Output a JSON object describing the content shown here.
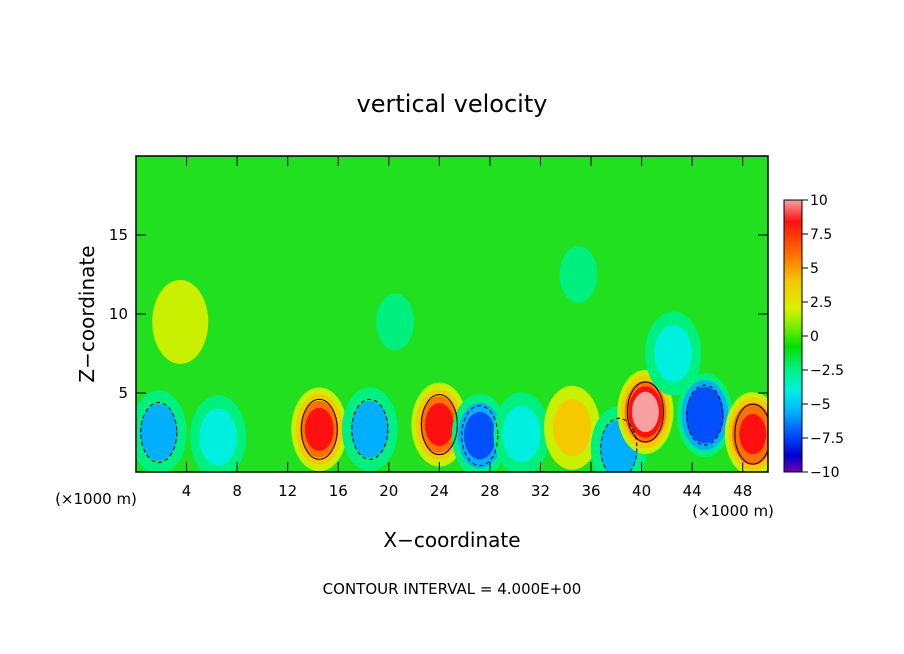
{
  "chart_data": {
    "type": "heatmap",
    "title": "vertical velocity",
    "xlabel": "X−coordinate",
    "ylabel": "Z−coordinate",
    "x_unit_left": "(×1000 m)",
    "x_unit_right": "(×1000 m)",
    "footer": "CONTOUR INTERVAL = 4.000E+00",
    "xlim": [
      0,
      50
    ],
    "ylim": [
      0,
      20
    ],
    "x_ticks": [
      4,
      8,
      12,
      16,
      20,
      24,
      28,
      32,
      36,
      40,
      44,
      48
    ],
    "x_tick_labels": [
      "4",
      "8",
      "12",
      "16",
      "20",
      "24",
      "28",
      "32",
      "36",
      "40",
      "44",
      "48"
    ],
    "y_ticks": [
      5,
      10,
      15
    ],
    "y_tick_labels": [
      "5",
      "10",
      "15"
    ],
    "colorbar": {
      "range": [
        -10,
        10
      ],
      "tick_values": [
        10,
        7.5,
        5,
        2.5,
        0,
        -2.5,
        -5,
        -7.5,
        -10
      ],
      "tick_labels": [
        "10",
        "7.5",
        "5",
        "2.5",
        "0",
        "−2.5",
        "−5",
        "−7.5",
        "−10"
      ],
      "colors": [
        "#f7a0a0",
        "#ff1010",
        "#ff7000",
        "#f5c800",
        "#d8f000",
        "#80f000",
        "#00e000",
        "#00f080",
        "#00f0e0",
        "#00b0ff",
        "#0050ff",
        "#0000d0",
        "#7000b0"
      ]
    },
    "features": [
      {
        "x": 1.8,
        "z": 2.5,
        "w": -4
      },
      {
        "x": 6.5,
        "z": 2.2,
        "w": -2.5
      },
      {
        "x": 14.5,
        "z": 2.7,
        "w": 7.5
      },
      {
        "x": 18.5,
        "z": 2.7,
        "w": -4
      },
      {
        "x": 24.0,
        "z": 3.0,
        "w": 7.5
      },
      {
        "x": 27.2,
        "z": 2.3,
        "w": -6
      },
      {
        "x": 30.5,
        "z": 2.4,
        "w": -2.5
      },
      {
        "x": 34.5,
        "z": 2.8,
        "w": 3
      },
      {
        "x": 38.2,
        "z": 1.5,
        "w": -4
      },
      {
        "x": 40.3,
        "z": 3.8,
        "w": 10
      },
      {
        "x": 45.0,
        "z": 3.6,
        "w": -7
      },
      {
        "x": 48.8,
        "z": 2.4,
        "w": 8.5
      },
      {
        "x": 3.5,
        "z": 9.5,
        "w": 1.5
      },
      {
        "x": 20.5,
        "z": 9.5,
        "w": -1.5
      },
      {
        "x": 35.0,
        "z": 12.5,
        "w": -1.5
      },
      {
        "x": 42.5,
        "z": 7.5,
        "w": -2.5
      }
    ]
  }
}
